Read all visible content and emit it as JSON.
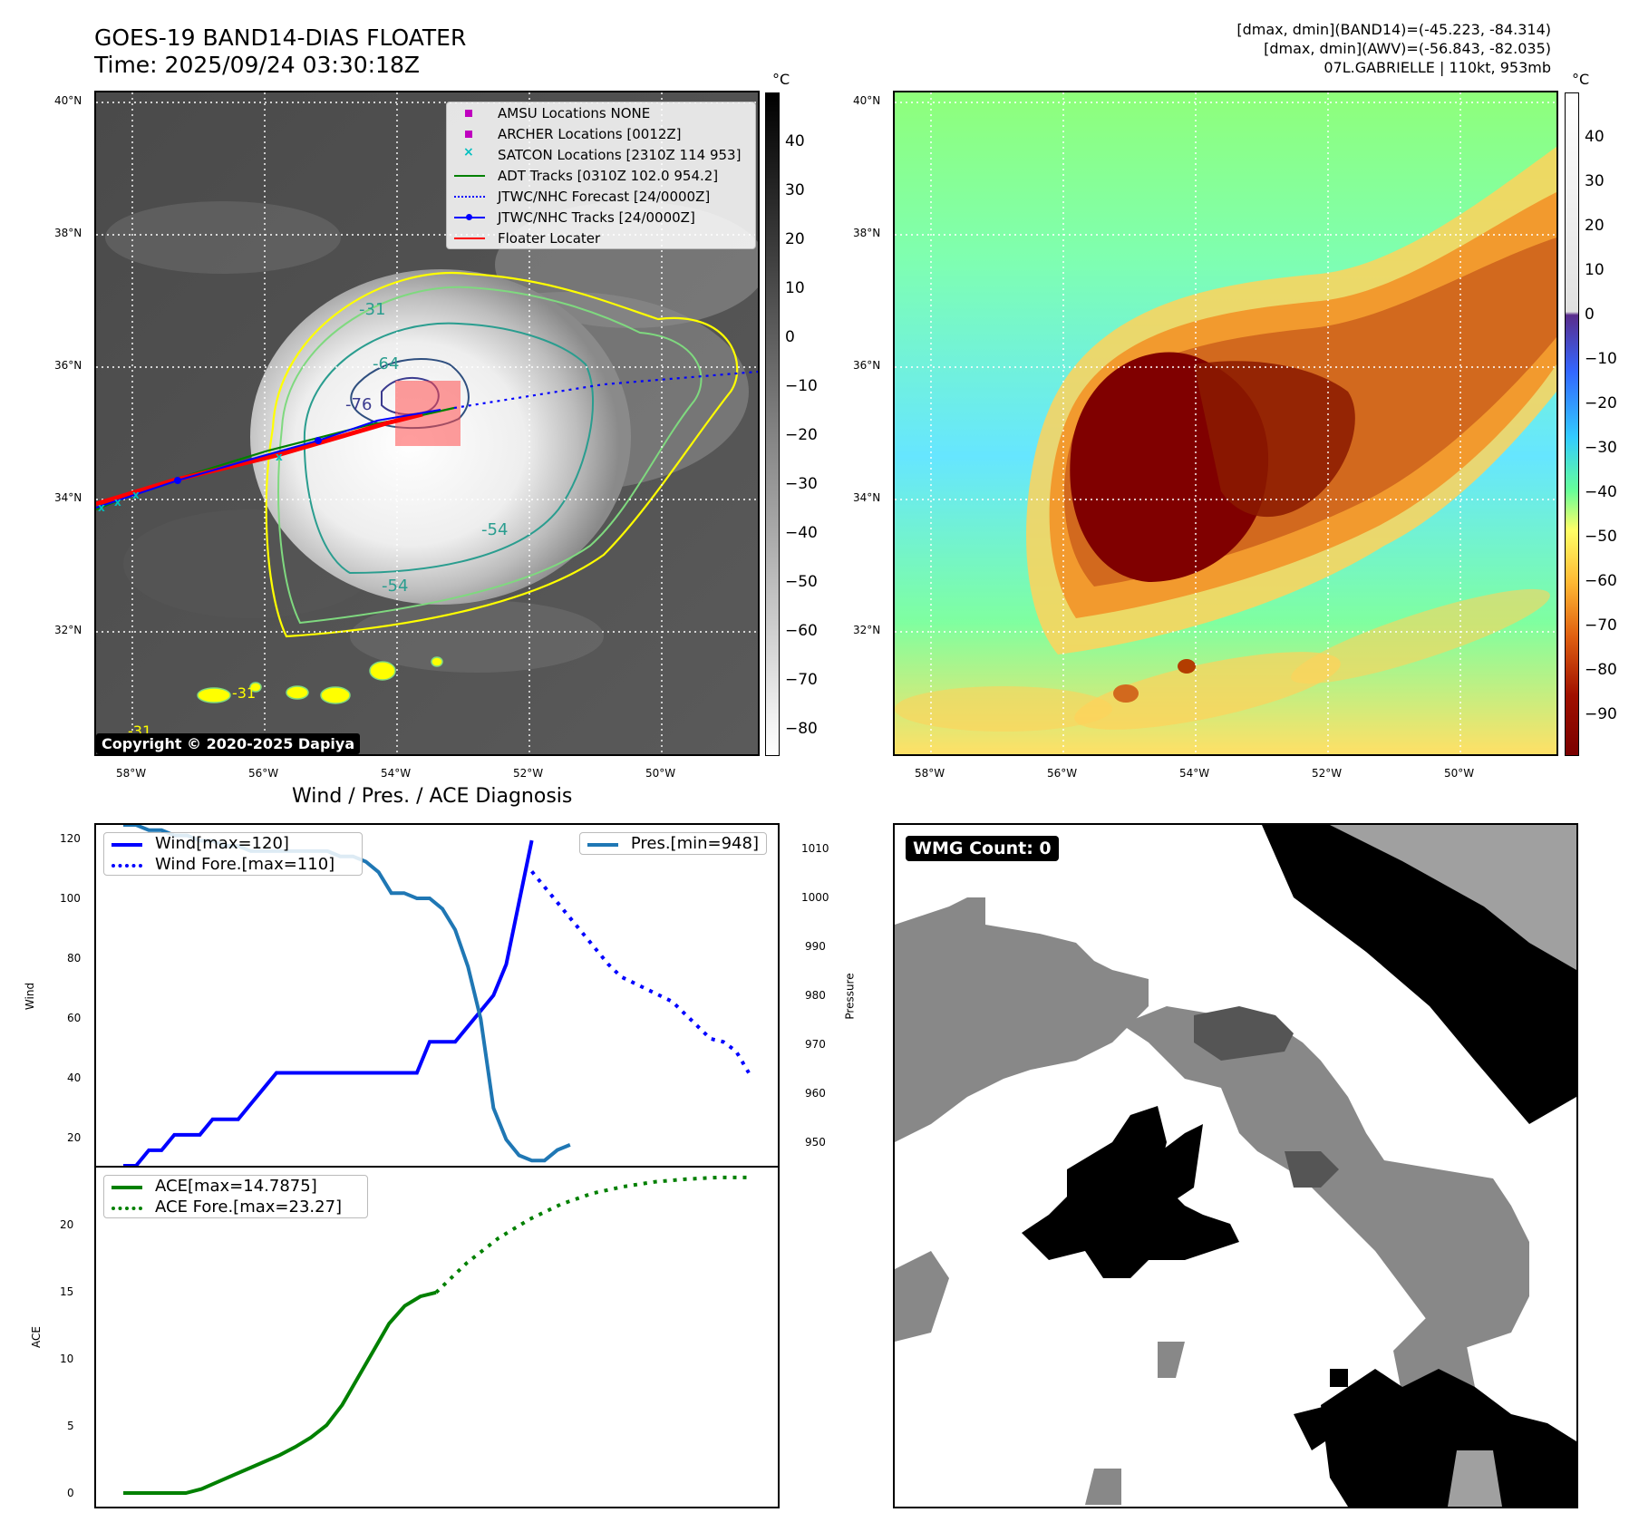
{
  "header": {
    "title_line1": "GOES-19 BAND14-DIAS FLOATER",
    "title_line2": "Time: 2025/09/24 03:30:18Z",
    "info_line1": "[dmax, dmin](BAND14)=(-45.223, -84.314)",
    "info_line2": "[dmax, dmin](AWV)=(-56.843, -82.035)",
    "info_line3": "07L.GABRIELLE | 110kt, 953mb"
  },
  "ir_panel": {
    "copyright": "Copyright © 2020-2025 Dapiya",
    "lat_ticks": [
      "40°N",
      "38°N",
      "36°N",
      "34°N",
      "32°N"
    ],
    "lon_ticks": [
      "58°W",
      "56°W",
      "54°W",
      "52°W",
      "50°W"
    ],
    "colorbar_unit": "°C",
    "colorbar_ticks": [
      "40",
      "30",
      "20",
      "10",
      "0",
      "−10",
      "−20",
      "−30",
      "−40",
      "−50",
      "−60",
      "−70",
      "−80"
    ],
    "contour_labels": [
      "-31",
      "-64",
      "-76",
      "-54",
      "-54",
      "-31",
      "-31"
    ],
    "legend": [
      {
        "label": "AMSU Locations NONE",
        "symbol": "square",
        "color": "#bf00bf"
      },
      {
        "label": "ARCHER Locations [0012Z]",
        "symbol": "square",
        "color": "#bf00bf"
      },
      {
        "label": "SATCON Locations [2310Z 114 953]",
        "symbol": "x",
        "color": "#00bfbf"
      },
      {
        "label": "ADT Tracks [0310Z 102.0 954.2]",
        "symbol": "line",
        "color": "#008000"
      },
      {
        "label": "JTWC/NHC Forecast [24/0000Z]",
        "symbol": "dotted",
        "color": "#0000ff"
      },
      {
        "label": "JTWC/NHC Tracks [24/0000Z]",
        "symbol": "line-dot",
        "color": "#0000ff"
      },
      {
        "label": "Floater Locater",
        "symbol": "line",
        "color": "#ff0000"
      }
    ]
  },
  "awv_panel": {
    "lat_ticks": [
      "40°N",
      "38°N",
      "36°N",
      "34°N",
      "32°N"
    ],
    "lon_ticks": [
      "58°W",
      "56°W",
      "54°W",
      "52°W",
      "50°W"
    ],
    "colorbar_unit": "°C",
    "colorbar_ticks": [
      "40",
      "30",
      "20",
      "10",
      "0",
      "−10",
      "−20",
      "−30",
      "−40",
      "−50",
      "−60",
      "−70",
      "−80",
      "−90"
    ]
  },
  "diagnosis": {
    "title": "Wind / Pres. / ACE Diagnosis",
    "wind_ylabel": "Wind",
    "pres_ylabel": "Pressure",
    "ace_ylabel": "ACE",
    "wind_ticks": [
      "120",
      "100",
      "80",
      "60",
      "40",
      "20"
    ],
    "pres_ticks": [
      "1010",
      "1000",
      "990",
      "980",
      "970",
      "960",
      "950"
    ],
    "ace_ticks": [
      "20",
      "15",
      "10",
      "5",
      "0"
    ],
    "legend_wind": "Wind[max=120]",
    "legend_wind_fore": "Wind Fore.[max=110]",
    "legend_pres": "Pres.[min=948]",
    "legend_ace": "ACE[max=14.7875]",
    "legend_ace_fore": "ACE Fore.[max=23.27]"
  },
  "wmg_panel": {
    "count_label": "WMG Count: 0"
  },
  "chart_data": [
    {
      "type": "line",
      "title": "Wind / Pres. / ACE Diagnosis",
      "ylabel": "Wind",
      "ylim": [
        15,
        125
      ],
      "x": [
        0,
        2,
        4,
        6,
        8,
        10,
        12,
        14,
        16,
        18,
        20,
        22,
        24,
        26,
        28,
        30,
        32,
        34,
        36,
        38,
        40,
        42,
        44,
        46,
        48,
        50,
        52,
        54,
        56,
        58,
        60,
        62,
        64
      ],
      "series": [
        {
          "name": "Wind[max=120]",
          "color": "#0000ff",
          "style": "solid",
          "values": [
            15,
            15,
            20,
            20,
            25,
            25,
            25,
            30,
            30,
            30,
            35,
            40,
            45,
            45,
            45,
            45,
            45,
            45,
            45,
            45,
            45,
            45,
            45,
            45,
            55,
            55,
            55,
            60,
            65,
            70,
            80,
            100,
            120
          ]
        },
        {
          "name": "Wind Fore.[max=110]",
          "color": "#0000ff",
          "style": "dotted",
          "x": [
            64,
            66,
            68,
            70,
            72,
            74,
            76,
            78,
            80,
            82,
            84,
            86,
            88,
            90,
            92,
            94,
            96,
            98
          ],
          "values": [
            110,
            105,
            100,
            95,
            90,
            85,
            80,
            76,
            74,
            72,
            70,
            68,
            64,
            60,
            56,
            55,
            52,
            45
          ]
        }
      ]
    },
    {
      "type": "line",
      "ylabel": "Pressure",
      "ylim": [
        947,
        1012
      ],
      "series": [
        {
          "name": "Pres.[min=948]",
          "color": "#1f77b4",
          "style": "solid",
          "x": [
            0,
            2,
            4,
            6,
            8,
            10,
            12,
            14,
            16,
            18,
            20,
            22,
            24,
            26,
            28,
            30,
            32,
            34,
            36,
            38,
            40,
            42,
            44,
            46,
            48,
            50,
            52,
            54,
            56,
            58,
            60,
            62,
            64,
            66,
            68,
            70
          ],
          "values": [
            1012,
            1012,
            1011,
            1011,
            1010,
            1010,
            1009,
            1009,
            1008,
            1008,
            1007,
            1007,
            1007,
            1007,
            1007,
            1007,
            1007,
            1006,
            1006,
            1005,
            1003,
            999,
            999,
            998,
            998,
            996,
            992,
            985,
            975,
            958,
            952,
            949,
            948,
            948,
            950,
            951
          ]
        }
      ]
    },
    {
      "type": "line",
      "ylabel": "ACE",
      "ylim": [
        -1,
        24
      ],
      "series": [
        {
          "name": "ACE[max=14.7875]",
          "color": "#008000",
          "style": "solid",
          "x": [
            0,
            10,
            15,
            20,
            25,
            30,
            35,
            40,
            45,
            50,
            55,
            60,
            65,
            70,
            75,
            80,
            85,
            90,
            95,
            100
          ],
          "values": [
            0,
            0,
            0,
            0,
            0.3,
            0.8,
            1.3,
            1.8,
            2.3,
            2.8,
            3.4,
            4.1,
            5.0,
            6.5,
            8.5,
            10.5,
            12.5,
            13.8,
            14.5,
            14.79
          ]
        },
        {
          "name": "ACE Fore.[max=23.27]",
          "color": "#008000",
          "style": "dotted",
          "x": [
            100,
            110,
            120,
            130,
            140,
            150,
            160,
            170,
            180,
            190,
            200
          ],
          "values": [
            14.79,
            17.0,
            18.8,
            20.2,
            21.3,
            22.1,
            22.6,
            22.95,
            23.15,
            23.27,
            23.27
          ]
        }
      ]
    }
  ]
}
